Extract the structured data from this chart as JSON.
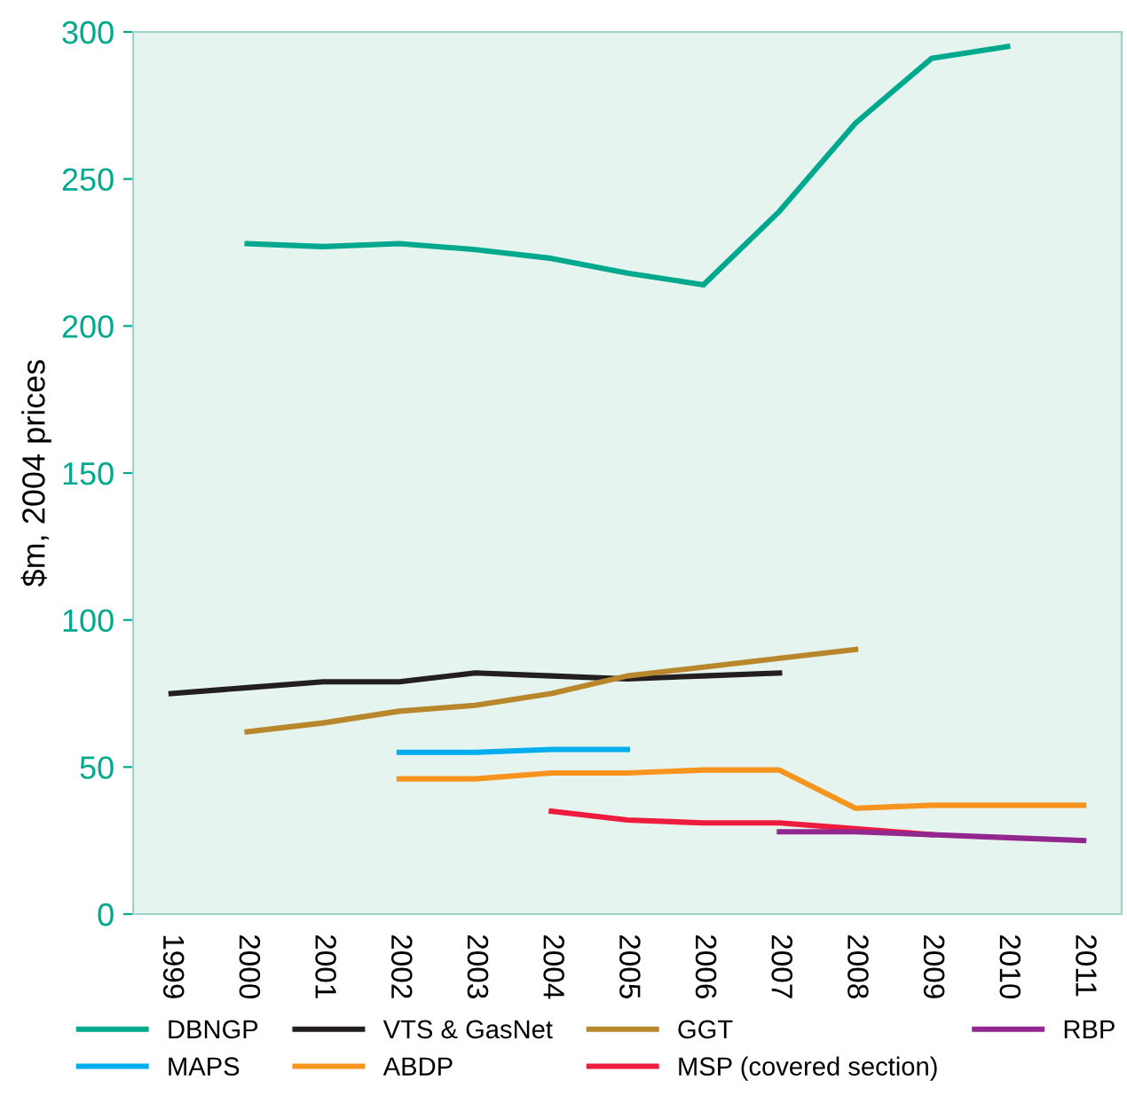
{
  "chart_data": {
    "type": "line",
    "ylabel": "$m, 2004 prices",
    "xlim": [
      1998.5,
      2011.5
    ],
    "xticks": [
      1999,
      2000,
      2001,
      2002,
      2003,
      2004,
      2005,
      2006,
      2007,
      2008,
      2009,
      2010,
      2011
    ],
    "ylim": [
      0,
      300
    ],
    "yticks": [
      0,
      50,
      100,
      150,
      200,
      250,
      300
    ],
    "grid": false,
    "legend": "bottom",
    "series": [
      {
        "name": "DBNGP",
        "color": "#00a88e",
        "x": [
          2000,
          2001,
          2002,
          2003,
          2004,
          2005,
          2006,
          2007,
          2008,
          2009,
          2010
        ],
        "values": [
          228,
          227,
          228,
          226,
          223,
          218,
          214,
          239,
          269,
          291,
          295
        ]
      },
      {
        "name": "VTS & GasNet",
        "color": "#231f20",
        "x": [
          1999,
          2000,
          2001,
          2002,
          2003,
          2004,
          2005,
          2006,
          2007
        ],
        "values": [
          75,
          77,
          79,
          79,
          82,
          81,
          80,
          81,
          82
        ]
      },
      {
        "name": "GGT",
        "color": "#b8862b",
        "x": [
          2000,
          2001,
          2002,
          2003,
          2004,
          2005,
          2006,
          2007,
          2008
        ],
        "values": [
          62,
          65,
          69,
          71,
          75,
          81,
          84,
          87,
          90
        ]
      },
      {
        "name": "MAPS",
        "color": "#00aeef",
        "x": [
          2002,
          2003,
          2004,
          2005
        ],
        "values": [
          55,
          55,
          56,
          56
        ]
      },
      {
        "name": "ABDP",
        "color": "#f7941d",
        "x": [
          2002,
          2003,
          2004,
          2005,
          2006,
          2007,
          2008,
          2009,
          2010,
          2011
        ],
        "values": [
          46,
          46,
          48,
          48,
          49,
          49,
          36,
          37,
          37,
          37
        ]
      },
      {
        "name": "MSP (covered section)",
        "color": "#ed1c3c",
        "x": [
          2004,
          2005,
          2006,
          2007,
          2008,
          2009
        ],
        "values": [
          35,
          32,
          31,
          31,
          29,
          27
        ]
      },
      {
        "name": "RBP",
        "color": "#92278f",
        "x": [
          2007,
          2008,
          2009,
          2010,
          2011
        ],
        "values": [
          28,
          28,
          27,
          26,
          25
        ]
      }
    ]
  }
}
